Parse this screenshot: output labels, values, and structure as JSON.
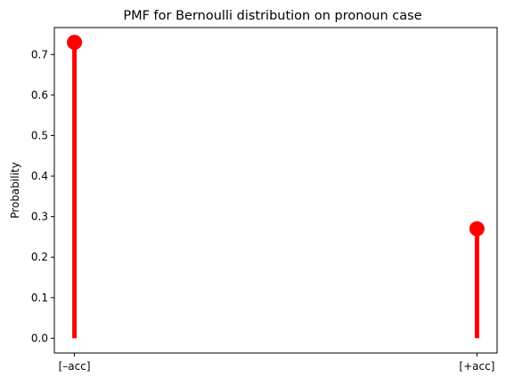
{
  "chart_data": {
    "type": "stem",
    "title": "PMF for Bernoulli distribution on pronoun case",
    "xlabel": "",
    "ylabel": "Probability",
    "categories": [
      "[–acc]",
      "[+acc]"
    ],
    "values": [
      0.73,
      0.27
    ],
    "ylim": [
      -0.0365,
      0.7665
    ],
    "yticks": [
      0.0,
      0.1,
      0.2,
      0.3,
      0.4,
      0.5,
      0.6,
      0.7
    ],
    "ytick_labels": [
      "0.0",
      "0.1",
      "0.2",
      "0.3",
      "0.4",
      "0.5",
      "0.6",
      "0.7"
    ],
    "grid": false,
    "color": "#ff0000"
  }
}
